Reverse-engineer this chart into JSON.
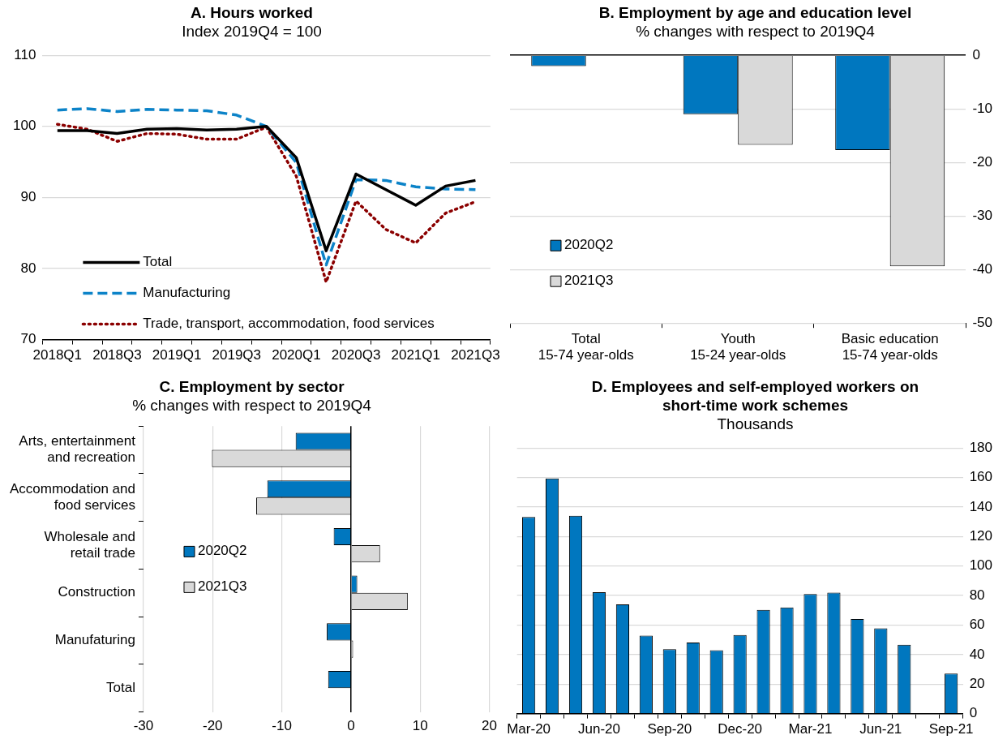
{
  "chart_data": [
    {
      "type": "line",
      "title": "A. Hours worked",
      "subtitle": "Index 2019Q4 = 100",
      "categories": [
        "2018Q1",
        null,
        "2018Q3",
        null,
        "2019Q1",
        null,
        "2019Q3",
        null,
        "2020Q1",
        null,
        "2020Q3",
        null,
        "2021Q1",
        null,
        "2021Q3"
      ],
      "series": [
        {
          "name": "Total",
          "color": "#000000",
          "line_style": "solid",
          "values": [
            99.4,
            99.4,
            99.0,
            99.6,
            99.7,
            99.5,
            99.6,
            100,
            95.6,
            82.5,
            93.3,
            91.1,
            88.9,
            91.6,
            92.4
          ]
        },
        {
          "name": "Manufacturing",
          "color": "#0c83c8",
          "line_style": "dashed",
          "values": [
            102.3,
            102.5,
            102.1,
            102.4,
            102.3,
            102.2,
            101.6,
            100,
            94.9,
            80.5,
            92.5,
            92.4,
            91.5,
            91.2,
            91.1
          ]
        },
        {
          "name": "Trade, transport, accommodation, food services",
          "color": "#8b0000",
          "line_style": "dotted",
          "values": [
            100.3,
            99.6,
            97.9,
            99.0,
            98.9,
            98.2,
            98.2,
            99.9,
            93.0,
            78.1,
            89.5,
            85.5,
            83.6,
            87.8,
            89.4
          ]
        }
      ],
      "ylim": [
        70,
        110
      ],
      "yticks": [
        70,
        80,
        90,
        100,
        110
      ],
      "grid": "y",
      "legend": "bottom left",
      "marker": "none"
    },
    {
      "type": "bar",
      "title": "B. Employment by age and education level",
      "subtitle": "% changes with respect to 2019Q4",
      "categories": [
        "Total\n15-74 year-olds",
        "Youth\n15-24 year-olds",
        "Basic education\n15-74 year-olds"
      ],
      "series": [
        {
          "name": "2020Q2",
          "color": "#0077bf",
          "values": [
            -2.0,
            -11.0,
            -17.7
          ]
        },
        {
          "name": "2021Q3",
          "color": "#d9d9d9",
          "values": [
            0,
            -16.7,
            -39.4
          ]
        }
      ],
      "ylim": [
        -50,
        0
      ],
      "yticks": [
        -50,
        -40,
        -30,
        -20,
        -10,
        0
      ],
      "grid": "y",
      "legend": "bottom left"
    },
    {
      "type": "bar",
      "orientation": "horizontal",
      "title": "C. Employment by sector",
      "subtitle": "% changes with respect to 2019Q4",
      "categories": [
        "Arts, entertainment\nand recreation",
        "Accommodation and\nfood services",
        "Wholesale and\nretail trade",
        "Construction",
        "Manufaturing",
        "Total"
      ],
      "series": [
        {
          "name": "2020Q2",
          "color": "#0077bf",
          "values": [
            -8.0,
            -12.1,
            -2.5,
            0.9,
            -3.5,
            -3.3
          ]
        },
        {
          "name": "2021Q3",
          "color": "#d9d9d9",
          "values": [
            -20.1,
            -13.7,
            4.2,
            8.2,
            0.3,
            0.1
          ]
        }
      ],
      "xlim": [
        -30,
        20
      ],
      "xticks": [
        -30,
        -20,
        -10,
        0,
        10,
        20
      ],
      "grid": "x",
      "legend": "left"
    },
    {
      "type": "bar",
      "title": "D. Employees and self-employed workers on short-time work schemes",
      "subtitle": "Thousands",
      "categories": [
        "Mar-20",
        null,
        null,
        "Jun-20",
        null,
        null,
        "Sep-20",
        null,
        null,
        "Dec-20",
        null,
        null,
        "Mar-21",
        null,
        null,
        "Jun-21",
        null,
        null,
        "Sep-21"
      ],
      "series": [
        {
          "color": "#0077bf",
          "values": [
            133.3,
            159.3,
            134,
            82.2,
            74.0,
            52.8,
            43.6,
            48.2,
            43.0,
            53.2,
            70.3,
            72.0,
            81.0,
            82.0,
            64.1,
            57.8,
            46.7,
            null,
            27.1
          ]
        }
      ],
      "ylim": [
        0,
        180
      ],
      "yticks": [
        0,
        20,
        40,
        60,
        80,
        100,
        120,
        140,
        160,
        180
      ],
      "grid": "y"
    }
  ]
}
